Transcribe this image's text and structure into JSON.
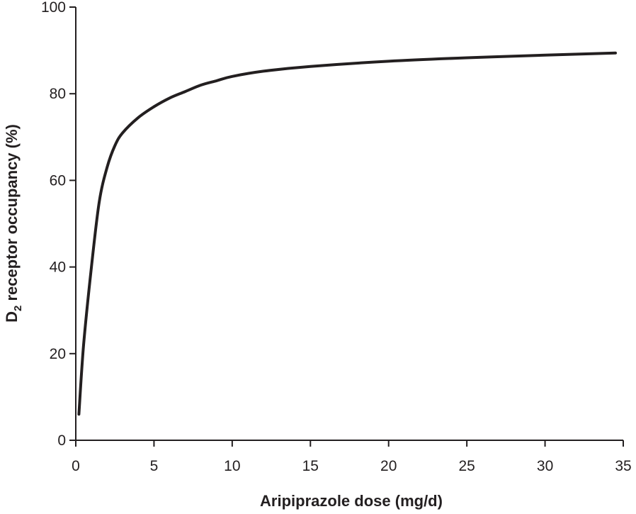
{
  "chart_data": {
    "type": "line",
    "title": "",
    "xlabel": "Aripiprazole dose (mg/d)",
    "ylabel": {
      "main": "D",
      "sub": "2",
      "rest": " receptor occupancy (%)"
    },
    "xlim": [
      0,
      35
    ],
    "ylim": [
      0,
      100
    ],
    "xticks": [
      0,
      5,
      10,
      15,
      20,
      25,
      30,
      35
    ],
    "yticks": [
      0,
      20,
      40,
      60,
      80,
      100
    ],
    "grid": false,
    "legend": "none",
    "line_color": "#231f20",
    "series": [
      {
        "x": [
          0.2,
          0.5,
          1,
          1.5,
          2,
          2.5,
          3,
          4,
          5,
          6,
          7,
          8,
          9,
          10,
          12,
          15,
          20,
          25,
          30,
          34.5
        ],
        "y": [
          6,
          22,
          40,
          55,
          63,
          68,
          71,
          74.5,
          77,
          79,
          80.5,
          82,
          83,
          84,
          85.2,
          86.3,
          87.5,
          88.3,
          88.9,
          89.4
        ]
      }
    ]
  }
}
